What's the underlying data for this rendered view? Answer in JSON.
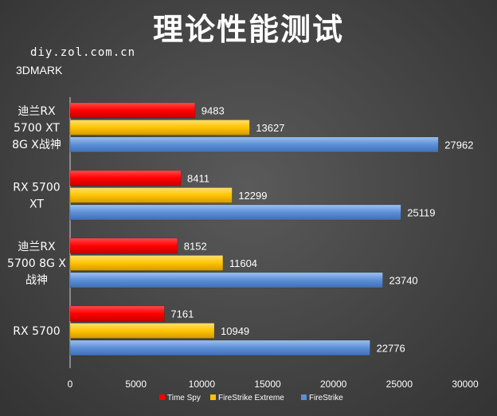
{
  "header": {
    "title": "理论性能测试",
    "source": "diy.zol.com.cn",
    "benchmark": "3DMARK"
  },
  "chart_data": {
    "type": "bar",
    "orientation": "horizontal",
    "categories": [
      [
        "迪兰RX",
        "5700 XT",
        "8G X战神"
      ],
      [
        "RX 5700",
        "XT"
      ],
      [
        "迪兰RX",
        "5700 8G X",
        "战神"
      ],
      [
        "RX 5700"
      ]
    ],
    "series": [
      {
        "name": "Time Spy",
        "color": "#ff0000",
        "values": [
          9483,
          8411,
          8152,
          7161
        ]
      },
      {
        "name": "FireStrike Extreme",
        "color": "#ffc000",
        "values": [
          13627,
          12299,
          11604,
          10949
        ]
      },
      {
        "name": "FireStrike",
        "color": "#5b8fd6",
        "values": [
          27962,
          25119,
          23740,
          22776
        ]
      }
    ],
    "xlim": [
      0,
      30000
    ],
    "xticks": [
      0,
      5000,
      10000,
      15000,
      20000,
      25000,
      30000
    ],
    "grid": false,
    "legend_position": "bottom"
  }
}
